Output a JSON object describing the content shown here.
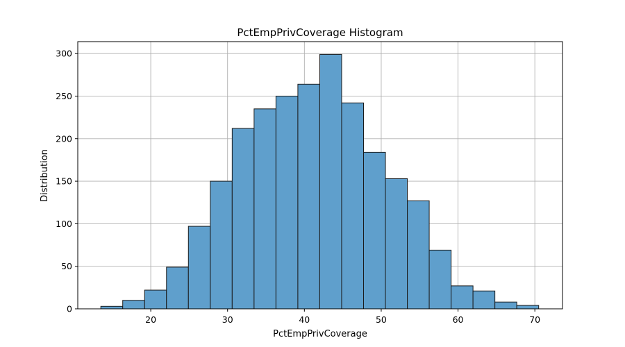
{
  "chart_data": {
    "type": "bar",
    "title": "PctEmpPrivCoverage Histogram",
    "xlabel": "PctEmpPrivCoverage",
    "ylabel": "Distribution",
    "xlim": [
      10.5,
      73.6
    ],
    "ylim": [
      0,
      314
    ],
    "xticks": [
      20,
      30,
      40,
      50,
      60,
      70
    ],
    "yticks": [
      0,
      50,
      100,
      150,
      200,
      250,
      300
    ],
    "grid": true,
    "bar_color": "#5f9fcc",
    "edge_color": "#1a1a1a",
    "bins": [
      {
        "x0": 13.5,
        "x1": 16.35,
        "count": 3
      },
      {
        "x0": 16.35,
        "x1": 19.2,
        "count": 10
      },
      {
        "x0": 19.2,
        "x1": 22.05,
        "count": 22
      },
      {
        "x0": 22.05,
        "x1": 24.9,
        "count": 49
      },
      {
        "x0": 24.9,
        "x1": 27.75,
        "count": 97
      },
      {
        "x0": 27.75,
        "x1": 30.6,
        "count": 150
      },
      {
        "x0": 30.6,
        "x1": 33.45,
        "count": 212
      },
      {
        "x0": 33.45,
        "x1": 36.3,
        "count": 235
      },
      {
        "x0": 36.3,
        "x1": 39.15,
        "count": 250
      },
      {
        "x0": 39.15,
        "x1": 42.0,
        "count": 264
      },
      {
        "x0": 42.0,
        "x1": 44.85,
        "count": 299
      },
      {
        "x0": 44.85,
        "x1": 47.7,
        "count": 242
      },
      {
        "x0": 47.7,
        "x1": 50.55,
        "count": 184
      },
      {
        "x0": 50.55,
        "x1": 53.4,
        "count": 153
      },
      {
        "x0": 53.4,
        "x1": 56.25,
        "count": 127
      },
      {
        "x0": 56.25,
        "x1": 59.1,
        "count": 69
      },
      {
        "x0": 59.1,
        "x1": 61.95,
        "count": 27
      },
      {
        "x0": 61.95,
        "x1": 64.8,
        "count": 21
      },
      {
        "x0": 64.8,
        "x1": 67.65,
        "count": 8
      },
      {
        "x0": 67.65,
        "x1": 70.5,
        "count": 4
      }
    ]
  }
}
